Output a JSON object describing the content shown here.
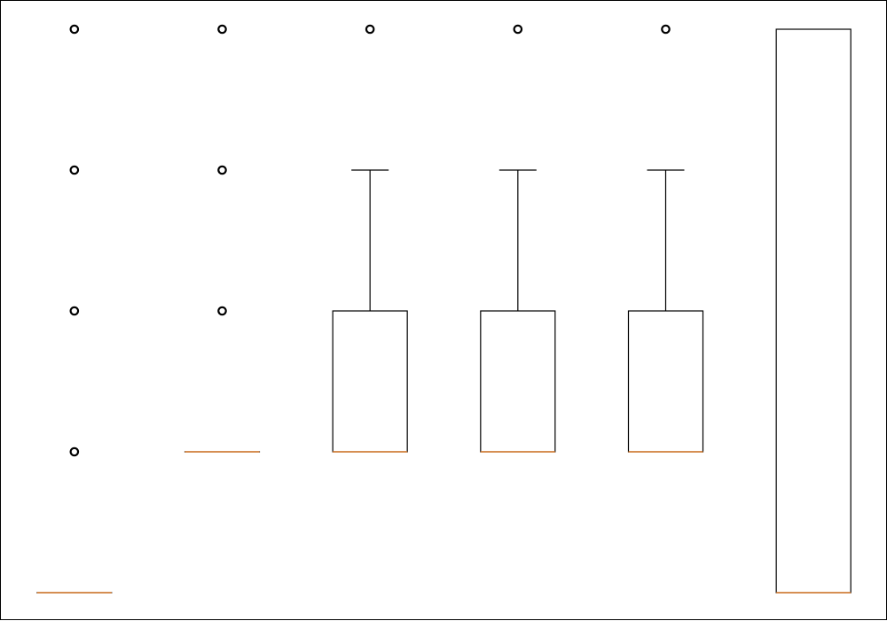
{
  "chart_data": {
    "type": "boxplot",
    "ylim": [
      0,
      4
    ],
    "axes_visible": false,
    "grid": false,
    "colors": {
      "box": "#000000",
      "median": "#d97b2b",
      "flier": "#000000",
      "frame": "#000000",
      "background": "#ffffff"
    },
    "boxes": [
      {
        "q1": 0,
        "median": 0,
        "q3": 0,
        "whisker_low": 0,
        "whisker_high": 0,
        "fliers": [
          1,
          2,
          3,
          4
        ]
      },
      {
        "q1": 1,
        "median": 1,
        "q3": 1,
        "whisker_low": 1,
        "whisker_high": 1,
        "fliers": [
          2,
          3,
          4
        ]
      },
      {
        "q1": 1,
        "median": 1,
        "q3": 2,
        "whisker_low": 1,
        "whisker_high": 3,
        "fliers": [
          4
        ]
      },
      {
        "q1": 1,
        "median": 1,
        "q3": 2,
        "whisker_low": 1,
        "whisker_high": 3,
        "fliers": [
          4
        ]
      },
      {
        "q1": 1,
        "median": 1,
        "q3": 2,
        "whisker_low": 1,
        "whisker_high": 3,
        "fliers": [
          4
        ]
      },
      {
        "q1": 0,
        "median": 0,
        "q3": 4,
        "whisker_low": 0,
        "whisker_high": 4,
        "fliers": []
      }
    ]
  }
}
